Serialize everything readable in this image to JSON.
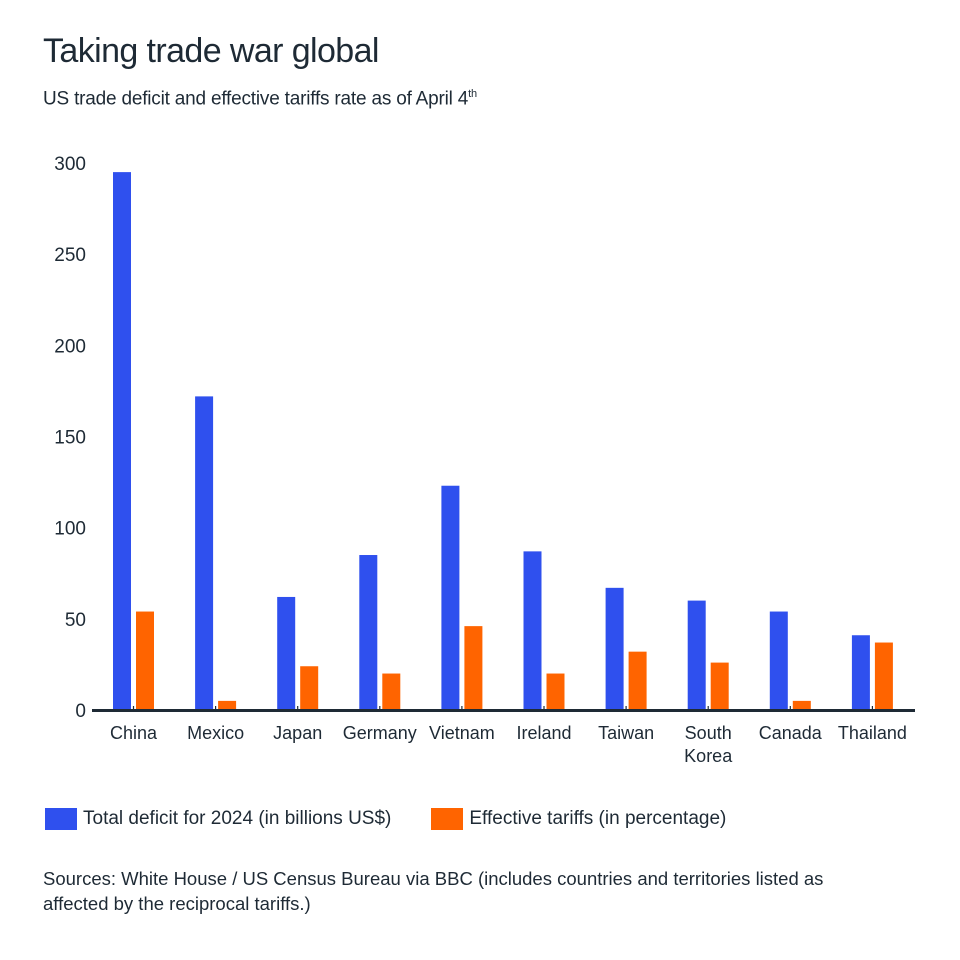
{
  "header": {
    "title": "Taking trade war global",
    "subtitle": "US trade deficit and effective tariffs rate as of April 4",
    "subtitle_sup": "th"
  },
  "colors": {
    "deficit": "#2f50ee",
    "tariffs": "#ff6400",
    "axis": "#1e2a35",
    "text": "#1e2a35"
  },
  "chart_data": {
    "type": "bar",
    "title": "Taking trade war global",
    "subtitle": "US trade deficit and effective tariffs rate as of April 4th",
    "xlabel": "",
    "ylabel": "",
    "ylim": [
      0,
      300
    ],
    "yticks": [
      0,
      50,
      100,
      150,
      200,
      250,
      300
    ],
    "grid": false,
    "legend_position": "bottom-left",
    "categories": [
      "China",
      "Mexico",
      "Japan",
      "Germany",
      "Vietnam",
      "Ireland",
      "Taiwan",
      "South Korea",
      "Canada",
      "Thailand"
    ],
    "category_lines": [
      [
        "China"
      ],
      [
        "Mexico"
      ],
      [
        "Japan"
      ],
      [
        "Germany"
      ],
      [
        "Vietnam"
      ],
      [
        "Ireland"
      ],
      [
        "Taiwan"
      ],
      [
        "South",
        "Korea"
      ],
      [
        "Canada"
      ],
      [
        "Thailand"
      ]
    ],
    "series": [
      {
        "name": "Total deficit for 2024 (in billions US$)",
        "color": "#2f50ee",
        "values": [
          295,
          172,
          62,
          85,
          123,
          87,
          67,
          60,
          54,
          41
        ]
      },
      {
        "name": "Effective tariffs (in percentage)",
        "color": "#ff6400",
        "values": [
          54,
          5,
          24,
          20,
          46,
          20,
          32,
          26,
          5,
          37
        ]
      }
    ]
  },
  "legend": [
    {
      "label": "Total deficit for 2024 (in billions US$)",
      "color": "#2f50ee"
    },
    {
      "label": "Effective tariffs (in percentage)",
      "color": "#ff6400"
    }
  ],
  "source": "Sources: White House / US Census Bureau via BBC (includes countries and territories listed as affected by the reciprocal tariffs.)"
}
